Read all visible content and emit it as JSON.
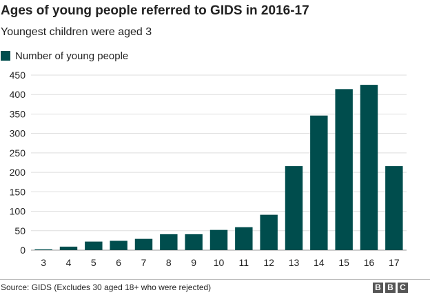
{
  "header": {
    "title": "Ages of young people referred to GIDS in 2016-17",
    "subtitle": "Youngest children were aged 3"
  },
  "legend": {
    "label": "Number of young people"
  },
  "footer": {
    "source": "Source: GIDS (Excludes 30 aged 18+ who were rejected)",
    "logo_letters": [
      "B",
      "B",
      "C"
    ]
  },
  "colors": {
    "bar": "#004d4d",
    "grid": "#dddddd",
    "text": "#222222",
    "logo": "#555555"
  },
  "chart_data": {
    "type": "bar",
    "title": "Ages of young people referred to GIDS in 2016-17",
    "subtitle": "Youngest children were aged 3",
    "categories": [
      "3",
      "4",
      "5",
      "6",
      "7",
      "8",
      "9",
      "10",
      "11",
      "12",
      "13",
      "14",
      "15",
      "16",
      "17"
    ],
    "series": [
      {
        "name": "Number of young people",
        "values": [
          2,
          9,
          22,
          24,
          29,
          41,
          41,
          52,
          59,
          91,
          216,
          346,
          414,
          425,
          216
        ]
      }
    ],
    "yticks": [
      0,
      50,
      100,
      150,
      200,
      250,
      300,
      350,
      400,
      450
    ],
    "ylim": [
      0,
      450
    ],
    "grid": true,
    "legend_position": "top-left",
    "xlabel": "",
    "ylabel": ""
  }
}
